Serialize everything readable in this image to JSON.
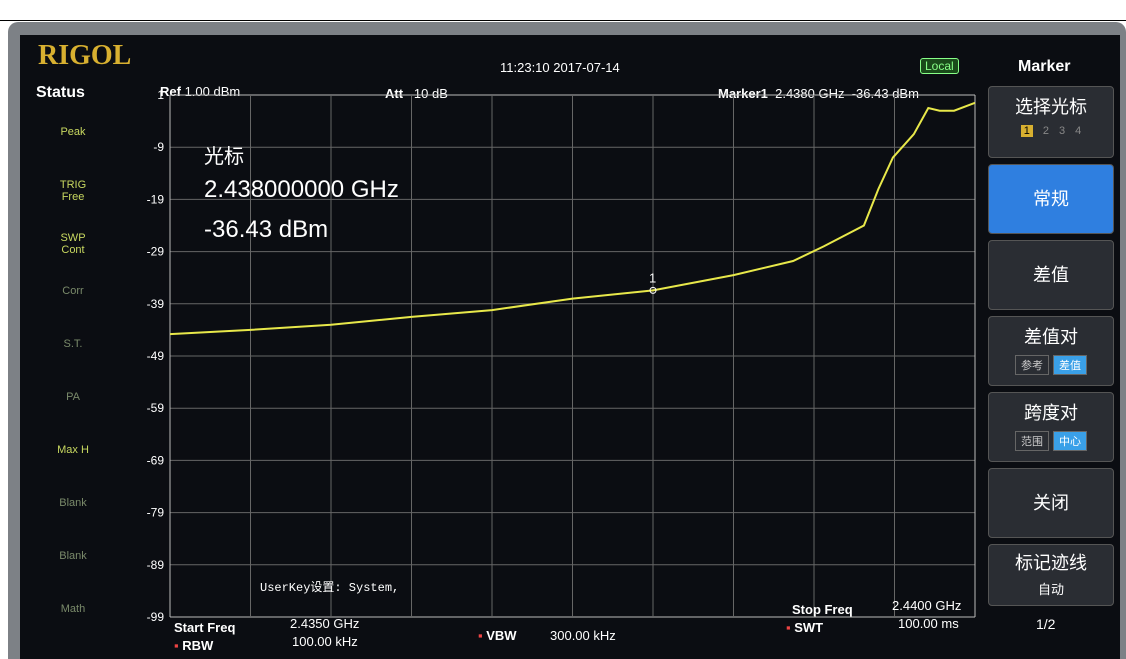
{
  "brand": "RIGOL",
  "datetime": "11:23:10 2017-07-14",
  "mode": "Local",
  "status": {
    "title": "Status",
    "items": [
      [
        "Peak"
      ],
      [
        "TRIG",
        "Free"
      ],
      [
        "SWP",
        "Cont"
      ],
      [
        "Corr"
      ],
      [
        "S.T."
      ],
      [
        "PA"
      ],
      [
        "Max H"
      ],
      [
        "Blank"
      ],
      [
        "Blank"
      ],
      [
        "Math"
      ]
    ]
  },
  "header": {
    "ref_label": "Ref",
    "ref_value": "1.00 dBm",
    "att_label": "Att",
    "att_value": "10 dB",
    "marker_label": "Marker1",
    "marker_freq": "2.4380 GHz",
    "marker_level": "-36.43 dBm"
  },
  "readout": {
    "title": "光标",
    "freq": "2.438000000 GHz",
    "level": "-36.43 dBm"
  },
  "marker_tag": "1",
  "userkey": "UserKey设置:  System,",
  "plot": {
    "ylim": [
      1,
      -99
    ],
    "yticks": [
      1,
      -9,
      -19,
      -29,
      -39,
      -49,
      -59,
      -69,
      -79,
      -89,
      -99
    ],
    "xlim": [
      2.435,
      2.44
    ],
    "divisions": 10,
    "trace": {
      "color": "#e8e84a",
      "x": [
        2.435,
        2.4355,
        2.436,
        2.4365,
        2.437,
        2.4375,
        2.438,
        2.4385,
        2.43887,
        2.43906,
        2.43931,
        2.4394,
        2.43949,
        2.43962,
        2.43971,
        2.43978,
        2.43987,
        2.44
      ],
      "values": [
        -44.8,
        -44,
        -43,
        -41.5,
        -40.2,
        -38,
        -36.43,
        -33.5,
        -30.8,
        -28,
        -24,
        -17,
        -11,
        -6.5,
        -1.5,
        -2,
        -2,
        -0.5
      ]
    },
    "marker_x": 2.438,
    "marker_y": -36.43
  },
  "footer": {
    "start_label": "Start Freq",
    "start_value": "2.4350 GHz",
    "rbw_label": "RBW",
    "rbw_value": "100.00 kHz",
    "vbw_label": "VBW",
    "vbw_value": "300.00 kHz",
    "stop_label": "Stop Freq",
    "stop_value": "2.4400 GHz",
    "swt_label": "SWT",
    "swt_value": "100.00 ms"
  },
  "menu": {
    "title": "Marker",
    "select": "选择光标",
    "markers": [
      "1",
      "2",
      "3",
      "4"
    ],
    "normal": "常规",
    "delta": "差值",
    "delta_pair": "差值对",
    "delta_pair_opts": [
      "参考",
      "差值"
    ],
    "span_pair": "跨度对",
    "span_pair_opts": [
      "范围",
      "中心"
    ],
    "off": "关闭",
    "trace": "标记迹线",
    "trace_mode": "自动",
    "page": "1/2"
  }
}
